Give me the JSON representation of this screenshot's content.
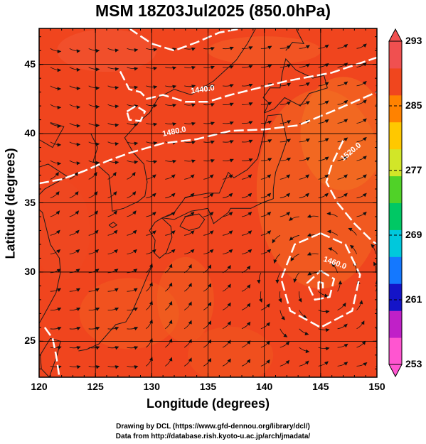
{
  "title": "MSM 18Z03Jul2025 (850.0hPa)",
  "xlabel": "Longitude (degrees)",
  "ylabel": "Latitude  (degrees)",
  "credits": {
    "line1": "Drawing by DCL (https://www.gfd-dennou.org/library/dcl/)",
    "line2": "Data from http://database.rish.kyoto-u.ac.jp/arch/jmadata/"
  },
  "map": {
    "xlim": [
      120,
      150
    ],
    "ylim": [
      22.4,
      47.6
    ],
    "xticks": [
      "120",
      "125",
      "130",
      "135",
      "140",
      "145",
      "150"
    ],
    "yticks": [
      "25",
      "30",
      "35",
      "40",
      "45"
    ],
    "grid": true,
    "fill_color": "#f0451e",
    "contour_color": "#ffffff",
    "contour_labels": [
      "1440.0",
      "1480.0",
      "1520.0",
      "1460.0"
    ]
  },
  "colorbar": {
    "min": 253,
    "max": 293,
    "ticks": [
      "293",
      "285",
      "277",
      "269",
      "261",
      "253"
    ],
    "colors": [
      "#ff55d0",
      "#c020c8",
      "#1414c8",
      "#1478ff",
      "#00c8dc",
      "#00c864",
      "#50d228",
      "#d2e628",
      "#ffc800",
      "#ff8200",
      "#f0461e",
      "#f05050"
    ]
  }
}
